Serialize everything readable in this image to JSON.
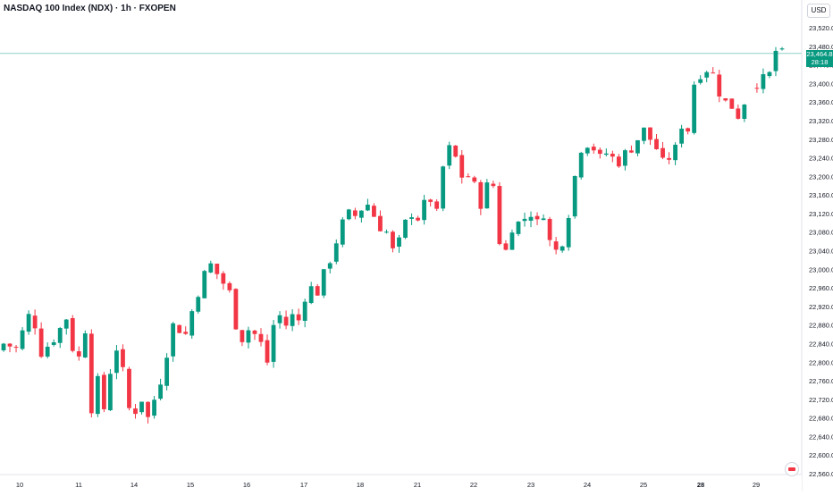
{
  "header": {
    "symbol": "NASDAQ 100 Index (NDX)",
    "interval": "1h",
    "exchange": "FXOPEN",
    "currency": "USD"
  },
  "last_price": {
    "value": "23,464.8",
    "countdown": "28:18"
  },
  "colors": {
    "up": "#089981",
    "down": "#f23645",
    "price_line": "#089981",
    "axis_text": "#131722",
    "border": "#e0e3eb"
  },
  "chart_data": {
    "type": "candlestick",
    "ylim": [
      22560,
      23520
    ],
    "y_ticks": [
      "23,520.0",
      "23,480.0",
      "23,440.0",
      "23,400.0",
      "23,360.0",
      "23,320.0",
      "23,280.0",
      "23,240.0",
      "23,200.0",
      "23,160.0",
      "23,120.0",
      "23,080.0",
      "23,040.0",
      "23,000.0",
      "22,960.0",
      "22,920.0",
      "22,880.0",
      "22,840.0",
      "22,800.0",
      "22,760.0",
      "22,720.0",
      "22,680.0",
      "22,640.0",
      "22,600.0",
      "22,560.0"
    ],
    "x_ticks": [
      "10",
      "11",
      "14",
      "15",
      "16",
      "17",
      "18",
      "21",
      "22",
      "23",
      "24",
      "25",
      "28",
      "29"
    ],
    "close_path": [
      [
        0,
        22840
      ],
      [
        2,
        22830
      ],
      [
        4,
        22900
      ],
      [
        5,
        22880
      ],
      [
        6,
        22820
      ],
      [
        8,
        22850
      ],
      [
        10,
        22895
      ],
      [
        11,
        22830
      ],
      [
        12,
        22810
      ],
      [
        13,
        22870
      ],
      [
        14,
        22700
      ],
      [
        15,
        22760
      ],
      [
        16,
        22700
      ],
      [
        17,
        22780
      ],
      [
        18,
        22830
      ],
      [
        19,
        22780
      ],
      [
        20,
        22700
      ],
      [
        21,
        22695
      ],
      [
        22,
        22720
      ],
      [
        23,
        22680
      ],
      [
        24,
        22720
      ],
      [
        25,
        22760
      ],
      [
        26,
        22820
      ],
      [
        27,
        22880
      ],
      [
        28,
        22870
      ],
      [
        29,
        22860
      ],
      [
        30,
        22910
      ],
      [
        31,
        22950
      ],
      [
        32,
        22990
      ],
      [
        33,
        23010
      ],
      [
        34,
        22990
      ],
      [
        35,
        22970
      ],
      [
        36,
        22950
      ],
      [
        37,
        22880
      ],
      [
        38,
        22850
      ],
      [
        39,
        22870
      ],
      [
        40,
        22860
      ],
      [
        41,
        22840
      ],
      [
        42,
        22800
      ],
      [
        43,
        22880
      ],
      [
        44,
        22900
      ],
      [
        45,
        22880
      ],
      [
        46,
        22900
      ],
      [
        47,
        22890
      ],
      [
        48,
        22940
      ],
      [
        49,
        22960
      ],
      [
        50,
        22950
      ],
      [
        51,
        22990
      ],
      [
        52,
        23020
      ],
      [
        53,
        23060
      ],
      [
        54,
        23100
      ],
      [
        55,
        23120
      ],
      [
        56,
        23115
      ],
      [
        57,
        23130
      ],
      [
        58,
        23140
      ],
      [
        59,
        23115
      ],
      [
        60,
        23090
      ],
      [
        61,
        23080
      ],
      [
        62,
        23040
      ],
      [
        63,
        23060
      ],
      [
        64,
        23100
      ],
      [
        65,
        23120
      ],
      [
        66,
        23110
      ],
      [
        67,
        23140
      ],
      [
        68,
        23150
      ],
      [
        69,
        23120
      ],
      [
        70,
        23220
      ],
      [
        71,
        23260
      ],
      [
        72,
        23240
      ],
      [
        73,
        23200
      ],
      [
        74,
        23200
      ],
      [
        75,
        23180
      ],
      [
        76,
        23140
      ],
      [
        77,
        23180
      ],
      [
        78,
        23180
      ],
      [
        79,
        23060
      ],
      [
        80,
        23040
      ],
      [
        81,
        23090
      ],
      [
        82,
        23100
      ],
      [
        83,
        23110
      ],
      [
        84,
        23120
      ],
      [
        85,
        23100
      ],
      [
        86,
        23120
      ],
      [
        87,
        23060
      ],
      [
        88,
        23040
      ],
      [
        89,
        23060
      ],
      [
        90,
        23120
      ],
      [
        91,
        23200
      ],
      [
        92,
        23260
      ],
      [
        93,
        23270
      ],
      [
        94,
        23260
      ],
      [
        95,
        23240
      ],
      [
        96,
        23250
      ],
      [
        97,
        23240
      ],
      [
        98,
        23230
      ],
      [
        99,
        23250
      ],
      [
        100,
        23260
      ],
      [
        101,
        23280
      ],
      [
        102,
        23300
      ],
      [
        103,
        23280
      ],
      [
        104,
        23260
      ],
      [
        105,
        23230
      ],
      [
        106,
        23240
      ],
      [
        107,
        23260
      ],
      [
        108,
        23310
      ],
      [
        109,
        23300
      ],
      [
        110,
        23400
      ],
      [
        111,
        23420
      ],
      [
        112,
        23430
      ],
      [
        113,
        23420
      ],
      [
        114,
        23380
      ],
      [
        115,
        23360
      ],
      [
        116,
        23350
      ],
      [
        117,
        23330
      ],
      [
        118,
        23360
      ],
      [
        120,
        23400
      ],
      [
        121,
        23410
      ],
      [
        122,
        23420
      ],
      [
        123,
        23470
      ],
      [
        124,
        23465
      ]
    ]
  }
}
